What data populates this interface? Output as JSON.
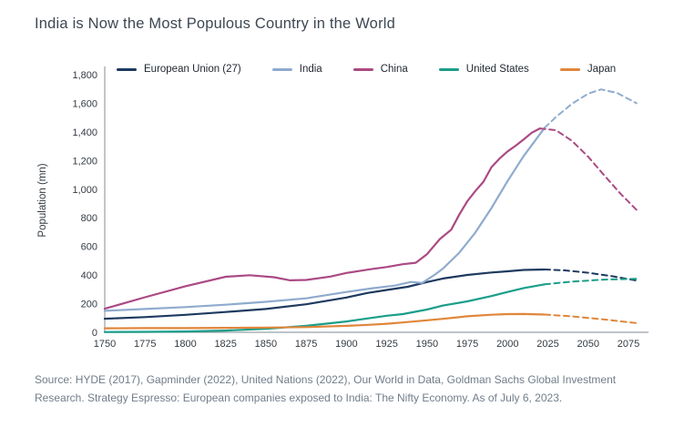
{
  "title": "India is Now the Most Populous Country in the World",
  "source": "Source: HYDE (2017), Gapminder (2022), United Nations (2022), Our World in Data, Goldman Sachs Global Investment Research. Strategy Espresso: European companies exposed to India: The Nifty Economy. As of July 6, 2023.",
  "chart_data": {
    "type": "line",
    "title": "India is Now the Most Populous Country in the World",
    "xlabel": "",
    "ylabel": "Population (mn)",
    "x_range": [
      1750,
      2075
    ],
    "y_range": [
      0,
      1800
    ],
    "x_ticks": [
      "1750",
      "1775",
      "1800",
      "1825",
      "1850",
      "1875",
      "1900",
      "1925",
      "1950",
      "1975",
      "2000",
      "2025",
      "2050",
      "2075"
    ],
    "y_ticks": [
      "0",
      "200",
      "400",
      "600",
      "800",
      "1,000",
      "1,200",
      "1,400",
      "1,600",
      "1,800"
    ],
    "grid": false,
    "legend_position": "top",
    "note": "Dashed line segments are forecasts/projections beyond ~2020-2023",
    "series": [
      {
        "id": "eu",
        "name": "European Union (27)",
        "color": "#1e3a5f",
        "solid": [
          [
            1750,
            95
          ],
          [
            1775,
            106
          ],
          [
            1800,
            122
          ],
          [
            1825,
            142
          ],
          [
            1850,
            163
          ],
          [
            1875,
            196
          ],
          [
            1900,
            243
          ],
          [
            1913,
            275
          ],
          [
            1925,
            296
          ],
          [
            1938,
            318
          ],
          [
            1950,
            351
          ],
          [
            1960,
            376
          ],
          [
            1975,
            401
          ],
          [
            1990,
            418
          ],
          [
            2000,
            426
          ],
          [
            2010,
            436
          ],
          [
            2023,
            439
          ]
        ],
        "projection": [
          [
            2023,
            439
          ],
          [
            2035,
            433
          ],
          [
            2050,
            416
          ],
          [
            2065,
            392
          ],
          [
            2080,
            362
          ]
        ]
      },
      {
        "id": "india",
        "name": "India",
        "color": "#8fabce",
        "solid": [
          [
            1750,
            150
          ],
          [
            1775,
            163
          ],
          [
            1800,
            176
          ],
          [
            1825,
            193
          ],
          [
            1850,
            213
          ],
          [
            1875,
            237
          ],
          [
            1900,
            282
          ],
          [
            1915,
            306
          ],
          [
            1930,
            326
          ],
          [
            1940,
            352
          ],
          [
            1947,
            345
          ],
          [
            1955,
            404
          ],
          [
            1960,
            446
          ],
          [
            1970,
            556
          ],
          [
            1980,
            697
          ],
          [
            1990,
            868
          ],
          [
            2000,
            1057
          ],
          [
            2010,
            1232
          ],
          [
            2023,
            1429
          ]
        ],
        "projection": [
          [
            2023,
            1429
          ],
          [
            2030,
            1504
          ],
          [
            2040,
            1597
          ],
          [
            2050,
            1667
          ],
          [
            2058,
            1697
          ],
          [
            2068,
            1672
          ],
          [
            2080,
            1600
          ]
        ]
      },
      {
        "id": "china",
        "name": "China",
        "color": "#ab4a84",
        "solid": [
          [
            1750,
            165
          ],
          [
            1775,
            245
          ],
          [
            1800,
            322
          ],
          [
            1825,
            388
          ],
          [
            1840,
            399
          ],
          [
            1855,
            385
          ],
          [
            1865,
            363
          ],
          [
            1875,
            366
          ],
          [
            1890,
            389
          ],
          [
            1900,
            415
          ],
          [
            1915,
            441
          ],
          [
            1925,
            456
          ],
          [
            1935,
            476
          ],
          [
            1943,
            486
          ],
          [
            1950,
            546
          ],
          [
            1958,
            652
          ],
          [
            1965,
            717
          ],
          [
            1970,
            822
          ],
          [
            1975,
            916
          ],
          [
            1980,
            987
          ],
          [
            1985,
            1052
          ],
          [
            1990,
            1154
          ],
          [
            1995,
            1214
          ],
          [
            2000,
            1264
          ],
          [
            2005,
            1304
          ],
          [
            2010,
            1348
          ],
          [
            2015,
            1394
          ],
          [
            2020,
            1424
          ]
        ],
        "projection": [
          [
            2020,
            1424
          ],
          [
            2030,
            1412
          ],
          [
            2040,
            1337
          ],
          [
            2050,
            1226
          ],
          [
            2060,
            1096
          ],
          [
            2070,
            969
          ],
          [
            2080,
            856
          ]
        ]
      },
      {
        "id": "us",
        "name": "United States",
        "color": "#1b9e8a",
        "solid": [
          [
            1750,
            2
          ],
          [
            1775,
            3
          ],
          [
            1800,
            6
          ],
          [
            1825,
            12
          ],
          [
            1850,
            24
          ],
          [
            1875,
            45
          ],
          [
            1900,
            76
          ],
          [
            1915,
            100
          ],
          [
            1925,
            116
          ],
          [
            1935,
            127
          ],
          [
            1950,
            159
          ],
          [
            1960,
            187
          ],
          [
            1975,
            216
          ],
          [
            1990,
            253
          ],
          [
            2000,
            282
          ],
          [
            2010,
            309
          ],
          [
            2023,
            335
          ]
        ],
        "projection": [
          [
            2023,
            335
          ],
          [
            2040,
            354
          ],
          [
            2060,
            368
          ],
          [
            2080,
            374
          ]
        ]
      },
      {
        "id": "japan",
        "name": "Japan",
        "color": "#e0863a",
        "solid": [
          [
            1750,
            28
          ],
          [
            1775,
            29
          ],
          [
            1800,
            29
          ],
          [
            1825,
            31
          ],
          [
            1850,
            33
          ],
          [
            1875,
            36
          ],
          [
            1900,
            45
          ],
          [
            1915,
            53
          ],
          [
            1925,
            60
          ],
          [
            1935,
            69
          ],
          [
            1950,
            84
          ],
          [
            1960,
            94
          ],
          [
            1975,
            112
          ],
          [
            1990,
            123
          ],
          [
            2000,
            127
          ],
          [
            2010,
            128
          ],
          [
            2023,
            124
          ]
        ],
        "projection": [
          [
            2023,
            124
          ],
          [
            2040,
            111
          ],
          [
            2060,
            90
          ],
          [
            2080,
            64
          ]
        ]
      }
    ]
  }
}
